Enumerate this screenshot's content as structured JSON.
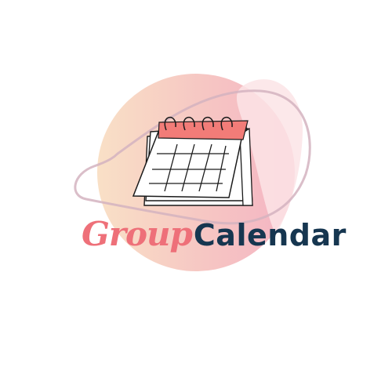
{
  "logo": {
    "word_group": "Group",
    "word_calendar": "Calendar"
  },
  "colors": {
    "background": "#ffffff",
    "circle_gradient_start": "#f8dcc2",
    "circle_gradient_end": "#f4b6c4",
    "outline_loop": "#d6b9c2",
    "calendar_header": "#f27c78",
    "calendar_ink": "#1a1a1a",
    "group_text": "#ee7079",
    "calendar_text": "#163650"
  },
  "icons": [
    "calendar-icon",
    "background-circle",
    "outline-loop"
  ]
}
